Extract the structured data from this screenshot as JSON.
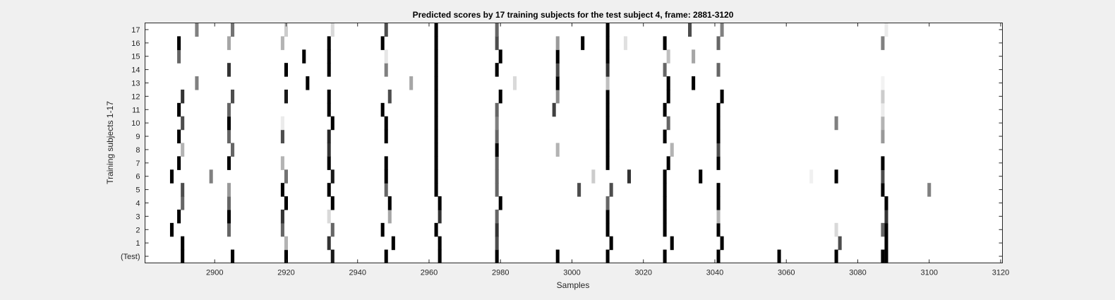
{
  "chart_data": {
    "type": "heatmap",
    "title": "Predicted scores by 17 training subjects for the test subject 4, frame: 2881-3120",
    "xlabel": "Samples",
    "ylabel": "Training subjects 1-17",
    "xlim": [
      2881,
      3120
    ],
    "x_ticks": [
      "2900",
      "2920",
      "2940",
      "2960",
      "2980",
      "3000",
      "3020",
      "3040",
      "3060",
      "3080",
      "3100",
      "3120"
    ],
    "x_tick_values": [
      2900,
      2920,
      2940,
      2960,
      2980,
      3000,
      3020,
      3040,
      3060,
      3080,
      3100,
      3120
    ],
    "y_ticks": [
      "(Test)",
      "1",
      "2",
      "3",
      "4",
      "5",
      "6",
      "7",
      "8",
      "9",
      "10",
      "11",
      "12",
      "13",
      "14",
      "15",
      "16",
      "17"
    ],
    "colormap": "white-to-black (score 0 = white, 1 = black)",
    "background_color": "#ffffff",
    "figure_color": "#f0f0f0",
    "rows": [
      {
        "row": "(Test)",
        "cells": [
          [
            2891,
            1.0
          ],
          [
            2905,
            1.0
          ],
          [
            2920,
            1.0
          ],
          [
            2933,
            0.9
          ],
          [
            2948,
            1.0
          ],
          [
            2963,
            1.0
          ],
          [
            2979,
            1.0
          ],
          [
            2996,
            1.0
          ],
          [
            3010,
            1.0
          ],
          [
            3026,
            1.0
          ],
          [
            3041,
            1.0
          ],
          [
            3058,
            1.0
          ],
          [
            3074,
            1.0
          ],
          [
            3087,
            1.0
          ],
          [
            3088,
            1.0
          ]
        ]
      },
      {
        "row": "1",
        "cells": [
          [
            2891,
            1.0
          ],
          [
            2920,
            0.3
          ],
          [
            2932,
            0.8
          ],
          [
            2950,
            1.0
          ],
          [
            2963,
            1.0
          ],
          [
            2979,
            0.7
          ],
          [
            3011,
            1.0
          ],
          [
            3028,
            1.0
          ],
          [
            3042,
            1.0
          ],
          [
            3075,
            0.7
          ],
          [
            3088,
            1.0
          ]
        ]
      },
      {
        "row": "2",
        "cells": [
          [
            2888,
            1.0
          ],
          [
            2904,
            0.6
          ],
          [
            2919,
            0.6
          ],
          [
            2933,
            0.6
          ],
          [
            2947,
            1.0
          ],
          [
            2962,
            1.0
          ],
          [
            2979,
            0.8
          ],
          [
            3010,
            1.0
          ],
          [
            3026,
            1.0
          ],
          [
            3041,
            1.0
          ],
          [
            3074,
            0.15
          ],
          [
            3087,
            0.6
          ],
          [
            3088,
            1.0
          ]
        ]
      },
      {
        "row": "3",
        "cells": [
          [
            2890,
            1.0
          ],
          [
            2904,
            1.0
          ],
          [
            2919,
            0.8
          ],
          [
            2932,
            0.15
          ],
          [
            2949,
            0.35
          ],
          [
            2963,
            0.8
          ],
          [
            2979,
            0.6
          ],
          [
            3010,
            1.0
          ],
          [
            3026,
            1.0
          ],
          [
            3041,
            0.3
          ],
          [
            3088,
            0.8
          ]
        ]
      },
      {
        "row": "4",
        "cells": [
          [
            2891,
            0.6
          ],
          [
            2904,
            0.6
          ],
          [
            2920,
            1.0
          ],
          [
            2933,
            1.0
          ],
          [
            2949,
            1.0
          ],
          [
            2963,
            1.0
          ],
          [
            2980,
            1.0
          ],
          [
            3010,
            0.6
          ],
          [
            3026,
            1.0
          ],
          [
            3041,
            1.0
          ],
          [
            3088,
            1.0
          ]
        ]
      },
      {
        "row": "5",
        "cells": [
          [
            2891,
            0.7
          ],
          [
            2904,
            0.4
          ],
          [
            2919,
            1.0
          ],
          [
            2932,
            1.0
          ],
          [
            2948,
            0.6
          ],
          [
            2962,
            1.0
          ],
          [
            2979,
            0.6
          ],
          [
            3002,
            0.7
          ],
          [
            3011,
            0.7
          ],
          [
            3026,
            1.0
          ],
          [
            3041,
            1.0
          ],
          [
            3087,
            1.0
          ],
          [
            3100,
            0.5
          ]
        ]
      },
      {
        "row": "6",
        "cells": [
          [
            2888,
            1.0
          ],
          [
            2899,
            0.5
          ],
          [
            2920,
            0.55
          ],
          [
            2933,
            0.9
          ],
          [
            2948,
            1.0
          ],
          [
            2962,
            1.0
          ],
          [
            2979,
            0.6
          ],
          [
            3006,
            0.2
          ],
          [
            3016,
            0.8
          ],
          [
            3026,
            1.0
          ],
          [
            3036,
            1.0
          ],
          [
            3067,
            0.06
          ],
          [
            3074,
            1.0
          ],
          [
            3087,
            0.7
          ]
        ]
      },
      {
        "row": "7",
        "cells": [
          [
            2890,
            1.0
          ],
          [
            2904,
            1.0
          ],
          [
            2919,
            0.3
          ],
          [
            2932,
            1.0
          ],
          [
            2948,
            1.0
          ],
          [
            2962,
            1.0
          ],
          [
            2979,
            0.6
          ],
          [
            3010,
            1.0
          ],
          [
            3027,
            1.0
          ],
          [
            3041,
            1.0
          ],
          [
            3087,
            1.0
          ]
        ]
      },
      {
        "row": "8",
        "cells": [
          [
            2891,
            0.3
          ],
          [
            2905,
            0.6
          ],
          [
            2932,
            0.8
          ],
          [
            2962,
            1.0
          ],
          [
            2979,
            1.0
          ],
          [
            2996,
            0.3
          ],
          [
            3010,
            1.0
          ],
          [
            3028,
            0.3
          ],
          [
            3041,
            0.7
          ]
        ]
      },
      {
        "row": "9",
        "cells": [
          [
            2890,
            1.0
          ],
          [
            2904,
            0.6
          ],
          [
            2919,
            0.7
          ],
          [
            2932,
            0.85
          ],
          [
            2948,
            1.0
          ],
          [
            2962,
            1.0
          ],
          [
            2979,
            0.6
          ],
          [
            3010,
            1.0
          ],
          [
            3026,
            1.0
          ],
          [
            3041,
            1.0
          ],
          [
            3087,
            0.4
          ]
        ]
      },
      {
        "row": "10",
        "cells": [
          [
            2891,
            0.7
          ],
          [
            2904,
            1.0
          ],
          [
            2919,
            0.08
          ],
          [
            2933,
            1.0
          ],
          [
            2948,
            1.0
          ],
          [
            2962,
            1.0
          ],
          [
            2979,
            0.5
          ],
          [
            3010,
            1.0
          ],
          [
            3027,
            0.6
          ],
          [
            3041,
            1.0
          ],
          [
            3074,
            0.5
          ],
          [
            3087,
            0.3
          ]
        ]
      },
      {
        "row": "11",
        "cells": [
          [
            2890,
            1.0
          ],
          [
            2904,
            0.6
          ],
          [
            2932,
            1.0
          ],
          [
            2947,
            1.0
          ],
          [
            2962,
            1.0
          ],
          [
            2979,
            0.6
          ],
          [
            2995,
            0.75
          ],
          [
            3010,
            1.0
          ],
          [
            3026,
            1.0
          ],
          [
            3041,
            1.0
          ],
          [
            3087,
            0.08
          ]
        ]
      },
      {
        "row": "12",
        "cells": [
          [
            2891,
            0.8
          ],
          [
            2905,
            0.7
          ],
          [
            2920,
            0.9
          ],
          [
            2932,
            1.0
          ],
          [
            2949,
            0.7
          ],
          [
            2962,
            1.0
          ],
          [
            2980,
            1.0
          ],
          [
            2996,
            0.45
          ],
          [
            3010,
            1.0
          ],
          [
            3027,
            1.0
          ],
          [
            3042,
            1.0
          ],
          [
            3087,
            0.2
          ]
        ]
      },
      {
        "row": "13",
        "cells": [
          [
            2895,
            0.5
          ],
          [
            2926,
            1.0
          ],
          [
            2955,
            0.35
          ],
          [
            2962,
            1.0
          ],
          [
            2984,
            0.15
          ],
          [
            2996,
            1.0
          ],
          [
            3010,
            0.25
          ],
          [
            3027,
            1.0
          ],
          [
            3034,
            1.0
          ],
          [
            3087,
            0.05
          ]
        ]
      },
      {
        "row": "14",
        "cells": [
          [
            2904,
            0.8
          ],
          [
            2920,
            1.0
          ],
          [
            2932,
            1.0
          ],
          [
            2948,
            0.5
          ],
          [
            2962,
            1.0
          ],
          [
            2979,
            1.0
          ],
          [
            2996,
            0.7
          ],
          [
            3010,
            0.8
          ],
          [
            3026,
            0.6
          ],
          [
            3041,
            0.6
          ]
        ]
      },
      {
        "row": "15",
        "cells": [
          [
            2890,
            0.6
          ],
          [
            2925,
            1.0
          ],
          [
            2932,
            1.0
          ],
          [
            2948,
            0.1
          ],
          [
            2962,
            1.0
          ],
          [
            2980,
            1.0
          ],
          [
            2996,
            1.0
          ],
          [
            3010,
            1.0
          ],
          [
            3027,
            0.25
          ],
          [
            3034,
            0.35
          ]
        ]
      },
      {
        "row": "16",
        "cells": [
          [
            2890,
            1.0
          ],
          [
            2904,
            0.35
          ],
          [
            2919,
            0.3
          ],
          [
            2932,
            1.0
          ],
          [
            2947,
            1.0
          ],
          [
            2962,
            1.0
          ],
          [
            2979,
            0.7
          ],
          [
            2996,
            0.4
          ],
          [
            3003,
            1.0
          ],
          [
            3010,
            1.0
          ],
          [
            3015,
            0.12
          ],
          [
            3026,
            1.0
          ],
          [
            3041,
            0.6
          ],
          [
            3087,
            0.5
          ]
        ]
      },
      {
        "row": "17",
        "cells": [
          [
            2895,
            0.5
          ],
          [
            2905,
            0.55
          ],
          [
            2920,
            0.2
          ],
          [
            2933,
            0.15
          ],
          [
            2948,
            0.7
          ],
          [
            2962,
            1.0
          ],
          [
            2979,
            0.6
          ],
          [
            3010,
            1.0
          ],
          [
            3033,
            0.7
          ],
          [
            3042,
            0.5
          ],
          [
            3088,
            0.08
          ]
        ]
      }
    ]
  }
}
